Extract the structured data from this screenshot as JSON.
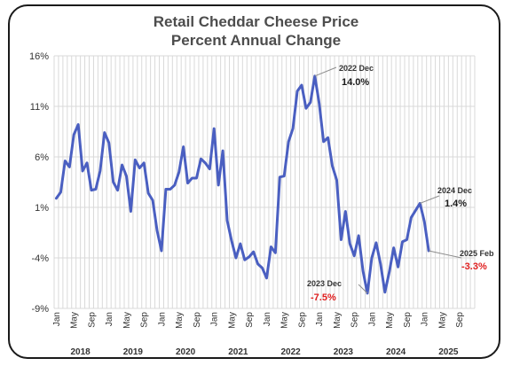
{
  "chart_data": {
    "type": "line",
    "title": "Retail Cheddar Cheese Price",
    "subtitle": "Percent Annual Change",
    "ylim": [
      -9,
      16
    ],
    "yticks": [
      "16%",
      "11%",
      "6%",
      "1%",
      "-4%",
      "-9%"
    ],
    "ytick_values": [
      16,
      11,
      6,
      1,
      -4,
      -9
    ],
    "month_labels": [
      "Jan",
      "May",
      "Sep"
    ],
    "years": [
      "2018",
      "2019",
      "2020",
      "2021",
      "2022",
      "2023",
      "2024",
      "2025"
    ],
    "grid": true,
    "line_color": "#4a5fc1",
    "series": [
      {
        "x": [
          "2018-01",
          "2018-02",
          "2018-03",
          "2018-04",
          "2018-05",
          "2018-06",
          "2018-07",
          "2018-08",
          "2018-09",
          "2018-10",
          "2018-11",
          "2018-12",
          "2019-01",
          "2019-02",
          "2019-03",
          "2019-04",
          "2019-05",
          "2019-06",
          "2019-07",
          "2019-08",
          "2019-09",
          "2019-10",
          "2019-11",
          "2019-12",
          "2020-01",
          "2020-02",
          "2020-03",
          "2020-04",
          "2020-05",
          "2020-06",
          "2020-07",
          "2020-08",
          "2020-09",
          "2020-10",
          "2020-11",
          "2020-12",
          "2021-01",
          "2021-02",
          "2021-03",
          "2021-04",
          "2021-05",
          "2021-06",
          "2021-07",
          "2021-08",
          "2021-09",
          "2021-10",
          "2021-11",
          "2021-12",
          "2022-01",
          "2022-02",
          "2022-03",
          "2022-04",
          "2022-05",
          "2022-06",
          "2022-07",
          "2022-08",
          "2022-09",
          "2022-10",
          "2022-11",
          "2022-12",
          "2023-01",
          "2023-02",
          "2023-03",
          "2023-04",
          "2023-05",
          "2023-06",
          "2023-07",
          "2023-08",
          "2023-09",
          "2023-10",
          "2023-11",
          "2023-12",
          "2024-01",
          "2024-02",
          "2024-03",
          "2024-04",
          "2024-05",
          "2024-06",
          "2024-07",
          "2024-08",
          "2024-09",
          "2024-10",
          "2024-11",
          "2024-12",
          "2025-01",
          "2025-02"
        ],
        "values": [
          1.9,
          2.5,
          5.6,
          5.0,
          8.2,
          9.2,
          4.6,
          5.4,
          2.7,
          2.8,
          4.6,
          8.4,
          7.4,
          3.5,
          2.7,
          5.2,
          4.1,
          0.6,
          5.7,
          4.9,
          5.4,
          2.4,
          1.7,
          -1.3,
          -3.3,
          2.8,
          2.8,
          3.2,
          4.5,
          7.0,
          3.4,
          3.9,
          3.9,
          5.8,
          5.4,
          4.8,
          8.8,
          3.2,
          6.6,
          -0.3,
          -2.3,
          -4.0,
          -2.6,
          -4.2,
          -3.9,
          -3.4,
          -4.6,
          -5.0,
          -6.0,
          -2.9,
          -3.5,
          4.0,
          4.1,
          7.5,
          8.8,
          12.5,
          13.1,
          10.8,
          11.4,
          14.0,
          11.3,
          7.5,
          7.9,
          5.1,
          3.7,
          -2.2,
          0.6,
          -2.6,
          -3.8,
          -1.8,
          -5.3,
          -7.5,
          -4.0,
          -2.5,
          -4.6,
          -7.4,
          -5.4,
          -3.0,
          -4.9,
          -2.4,
          -2.2,
          0.0,
          0.7,
          1.4,
          -0.4,
          -3.3
        ]
      }
    ],
    "annotations": [
      {
        "label": "2022 Dec",
        "value": "14.0%",
        "date": "2022-12",
        "color": "#1a1a1a"
      },
      {
        "label": "2024 Dec",
        "value": "1.4%",
        "date": "2024-12",
        "color": "#1a1a1a"
      },
      {
        "label": "2023 Dec",
        "value": "-7.5%",
        "date": "2023-12",
        "color": "#e02020"
      },
      {
        "label": "2025 Feb",
        "value": "-3.3%",
        "date": "2025-02",
        "color": "#e02020"
      }
    ]
  }
}
